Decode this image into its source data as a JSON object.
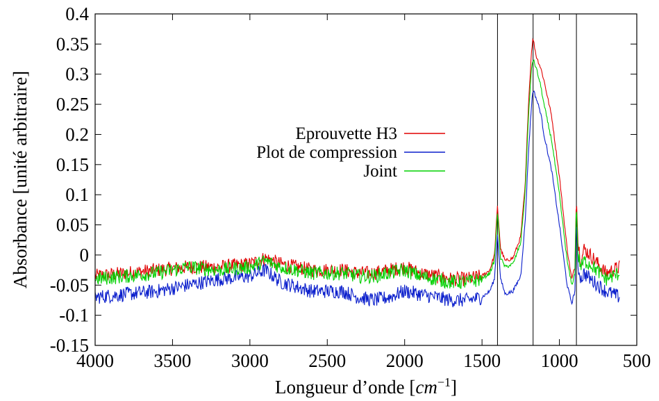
{
  "chart_data": {
    "type": "line",
    "title": "",
    "xlabel_main": "Longueur d’onde [",
    "xlabel_unit": "cm",
    "xlabel_exp": "−1",
    "xlabel_close": "]",
    "ylabel": "Absorbance [unité arbitraire]",
    "xlim": [
      4000,
      500
    ],
    "ylim": [
      -0.15,
      0.4
    ],
    "x_ticks": [
      4000,
      3500,
      3000,
      2500,
      2000,
      1500,
      1000,
      500
    ],
    "x_tick_labels": [
      "4000",
      "3500",
      "3000",
      "2500",
      "2000",
      "1500",
      "1000",
      "500"
    ],
    "y_ticks": [
      -0.15,
      -0.1,
      -0.05,
      0,
      0.05,
      0.1,
      0.15,
      0.2,
      0.25,
      0.3,
      0.35,
      0.4
    ],
    "y_tick_labels": [
      "-0.15",
      "-0.1",
      "-0.05",
      "0",
      "0.05",
      "0.1",
      "0.15",
      "0.2",
      "0.25",
      "0.3",
      "0.35",
      "0.4"
    ],
    "vertical_lines": [
      1400,
      1170,
      890
    ],
    "legend_position": "center",
    "series": [
      {
        "name": "Eprouvette H3",
        "color": "#e00000",
        "x": [
          4000,
          3800,
          3600,
          3400,
          3200,
          3000,
          2900,
          2800,
          2600,
          2400,
          2300,
          2200,
          2100,
          2000,
          1900,
          1800,
          1700,
          1600,
          1500,
          1450,
          1420,
          1400,
          1380,
          1350,
          1300,
          1250,
          1220,
          1200,
          1180,
          1170,
          1150,
          1120,
          1100,
          1050,
          1000,
          950,
          920,
          900,
          890,
          880,
          860,
          840,
          800,
          700,
          610
        ],
        "y": [
          -0.035,
          -0.03,
          -0.025,
          -0.02,
          -0.02,
          -0.015,
          -0.005,
          -0.015,
          -0.025,
          -0.025,
          -0.03,
          -0.03,
          -0.025,
          -0.02,
          -0.03,
          -0.035,
          -0.04,
          -0.04,
          -0.035,
          -0.025,
          0.0,
          0.08,
          0.01,
          -0.01,
          -0.005,
          0.03,
          0.12,
          0.25,
          0.34,
          0.36,
          0.33,
          0.31,
          0.29,
          0.23,
          0.13,
          0.01,
          -0.04,
          -0.02,
          0.1,
          0.02,
          -0.01,
          0.01,
          0.0,
          -0.03,
          -0.02
        ]
      },
      {
        "name": "Plot de compression",
        "color": "#0a1ecc",
        "x": [
          4000,
          3800,
          3600,
          3400,
          3200,
          3000,
          2900,
          2800,
          2600,
          2400,
          2300,
          2200,
          2100,
          2000,
          1900,
          1800,
          1700,
          1600,
          1500,
          1450,
          1420,
          1400,
          1380,
          1350,
          1300,
          1250,
          1220,
          1200,
          1180,
          1170,
          1150,
          1120,
          1100,
          1050,
          1000,
          950,
          920,
          900,
          890,
          880,
          860,
          840,
          800,
          700,
          610
        ],
        "y": [
          -0.07,
          -0.065,
          -0.06,
          -0.05,
          -0.04,
          -0.035,
          -0.025,
          -0.045,
          -0.06,
          -0.06,
          -0.07,
          -0.075,
          -0.07,
          -0.06,
          -0.065,
          -0.07,
          -0.075,
          -0.075,
          -0.07,
          -0.06,
          -0.04,
          0.035,
          -0.04,
          -0.065,
          -0.06,
          -0.035,
          0.06,
          0.17,
          0.25,
          0.275,
          0.26,
          0.235,
          0.2,
          0.14,
          0.05,
          -0.05,
          -0.08,
          -0.06,
          0.06,
          -0.02,
          -0.04,
          -0.03,
          -0.04,
          -0.06,
          -0.07
        ]
      },
      {
        "name": "Joint",
        "color": "#00d000",
        "x": [
          4000,
          3800,
          3600,
          3400,
          3200,
          3000,
          2900,
          2800,
          2600,
          2400,
          2300,
          2200,
          2100,
          2000,
          1900,
          1800,
          1700,
          1600,
          1500,
          1450,
          1420,
          1400,
          1380,
          1350,
          1300,
          1250,
          1220,
          1200,
          1180,
          1170,
          1150,
          1120,
          1100,
          1050,
          1000,
          950,
          920,
          900,
          890,
          880,
          860,
          840,
          800,
          700,
          610
        ],
        "y": [
          -0.04,
          -0.035,
          -0.03,
          -0.02,
          -0.025,
          -0.02,
          -0.01,
          -0.02,
          -0.03,
          -0.03,
          -0.035,
          -0.035,
          -0.03,
          -0.025,
          -0.035,
          -0.04,
          -0.045,
          -0.045,
          -0.04,
          -0.03,
          -0.01,
          0.07,
          -0.005,
          -0.02,
          -0.015,
          0.02,
          0.11,
          0.23,
          0.31,
          0.325,
          0.31,
          0.28,
          0.25,
          0.19,
          0.1,
          -0.01,
          -0.05,
          -0.03,
          0.09,
          0.0,
          -0.02,
          -0.01,
          -0.015,
          -0.04,
          -0.03
        ]
      }
    ]
  }
}
